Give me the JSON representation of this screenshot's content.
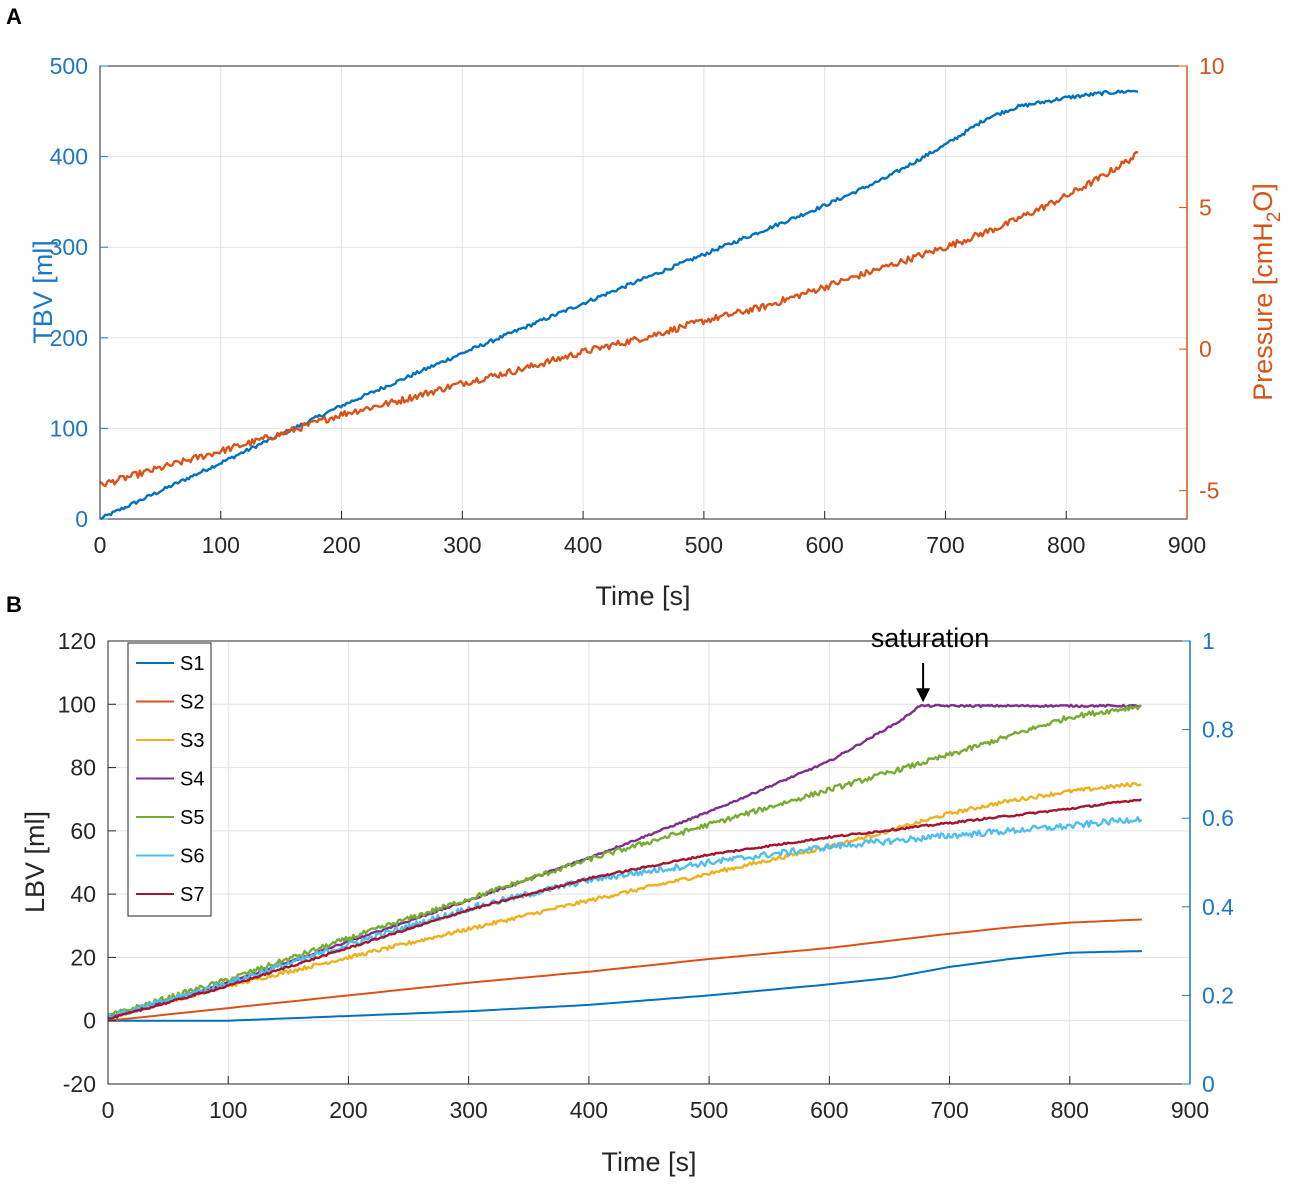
{
  "chart_data": [
    {
      "panel": "A",
      "type": "line",
      "xlabel": "Time [s]",
      "ylabel": "TBV [ml]",
      "y2label": "Pressure [cmH",
      "y2label_sub": "2",
      "y2label_end": "O]",
      "xlim": [
        0,
        900
      ],
      "ylim": [
        0,
        500
      ],
      "y2lim": [
        -6,
        10
      ],
      "xticks": [
        0,
        100,
        200,
        300,
        400,
        500,
        600,
        700,
        800,
        900
      ],
      "yticks": [
        0,
        100,
        200,
        300,
        400,
        500
      ],
      "y2ticks": [
        -5,
        0,
        5,
        10
      ],
      "grid": true,
      "colors": {
        "left": "#1f77c4",
        "right": "#d95319"
      },
      "series": [
        {
          "name": "TBV",
          "axis": "left",
          "color": "#0072bd",
          "noise": 2,
          "x": [
            0,
            100,
            200,
            300,
            400,
            500,
            600,
            650,
            700,
            720,
            735,
            760,
            800,
            830,
            860
          ],
          "y": [
            0,
            62,
            125,
            183,
            238,
            292,
            346,
            376,
            413,
            430,
            443,
            455,
            465,
            470,
            473
          ]
        },
        {
          "name": "Pressure",
          "axis": "right",
          "color": "#d95319",
          "noise": 0.12,
          "x": [
            0,
            50,
            100,
            150,
            200,
            250,
            300,
            350,
            400,
            450,
            500,
            550,
            600,
            650,
            700,
            750,
            800,
            830,
            860
          ],
          "y": [
            -4.8,
            -4.2,
            -3.6,
            -3.0,
            -2.3,
            -1.8,
            -1.2,
            -0.7,
            -0.1,
            0.4,
            1.0,
            1.5,
            2.2,
            2.9,
            3.6,
            4.4,
            5.4,
            6.1,
            6.9
          ]
        }
      ]
    },
    {
      "panel": "B",
      "type": "line",
      "xlabel": "Time [s]",
      "ylabel": "LBV [ml]",
      "xlim": [
        0,
        900
      ],
      "ylim": [
        -20,
        120
      ],
      "y2lim": [
        0,
        1
      ],
      "xticks": [
        0,
        100,
        200,
        300,
        400,
        500,
        600,
        700,
        800,
        900
      ],
      "yticks": [
        -20,
        0,
        20,
        40,
        60,
        80,
        100,
        120
      ],
      "y2ticks": [
        0,
        0.2,
        0.4,
        0.6,
        0.8,
        1
      ],
      "y2ticklabels": [
        "0",
        "0.2",
        "0.4",
        "0.6",
        "0.8",
        "1"
      ],
      "grid": true,
      "legend_position": "top-left",
      "annotation": {
        "text": "saturation",
        "x": 678,
        "y": 100
      },
      "colors": {
        "right_axis": "#1f77c4"
      },
      "series": [
        {
          "name": "S1",
          "color": "#0072bd",
          "noise": 0,
          "x": [
            0,
            100,
            200,
            300,
            400,
            500,
            600,
            650,
            700,
            750,
            800,
            860
          ],
          "y": [
            0,
            0,
            1.5,
            3,
            5,
            8,
            11.5,
            13.5,
            17,
            19.5,
            21.5,
            22
          ]
        },
        {
          "name": "S2",
          "color": "#d95319",
          "noise": 0,
          "x": [
            0,
            100,
            200,
            300,
            400,
            500,
            600,
            700,
            750,
            800,
            860
          ],
          "y": [
            0,
            4,
            8,
            12,
            15.5,
            19.5,
            23,
            27.5,
            29.5,
            31,
            32
          ]
        },
        {
          "name": "S3",
          "color": "#edb120",
          "noise": 0.6,
          "x": [
            0,
            100,
            200,
            300,
            400,
            500,
            600,
            650,
            700,
            750,
            800,
            860
          ],
          "y": [
            1,
            11,
            20,
            29,
            38,
            46.5,
            55,
            60,
            65.5,
            69.5,
            72.5,
            75
          ]
        },
        {
          "name": "S4",
          "color": "#7e2f8e",
          "noise": 0.3,
          "x": [
            0,
            100,
            200,
            300,
            400,
            500,
            600,
            660,
            675,
            860
          ],
          "y": [
            1,
            12,
            25,
            38,
            51.5,
            66,
            82,
            95,
            99.5,
            99.5
          ]
        },
        {
          "name": "S5",
          "color": "#77ac30",
          "noise": 0.8,
          "x": [
            0,
            100,
            200,
            300,
            400,
            500,
            600,
            700,
            750,
            800,
            860
          ],
          "y": [
            1.5,
            13,
            26,
            38.5,
            51,
            62,
            73,
            84,
            90,
            96,
            99.5
          ]
        },
        {
          "name": "S6",
          "color": "#4dbeee",
          "noise": 1.0,
          "x": [
            0,
            100,
            200,
            300,
            400,
            500,
            600,
            700,
            800,
            860
          ],
          "y": [
            1,
            12,
            24,
            35.5,
            44.5,
            50,
            55,
            58.5,
            61.5,
            64
          ]
        },
        {
          "name": "S7",
          "color": "#a2142f",
          "noise": 0.3,
          "x": [
            0,
            100,
            200,
            300,
            400,
            500,
            600,
            700,
            800,
            860
          ],
          "y": [
            0.5,
            11,
            23,
            35,
            45,
            52.5,
            58,
            62.5,
            67,
            70
          ]
        }
      ]
    }
  ],
  "panel_labels": [
    "A",
    "B"
  ]
}
